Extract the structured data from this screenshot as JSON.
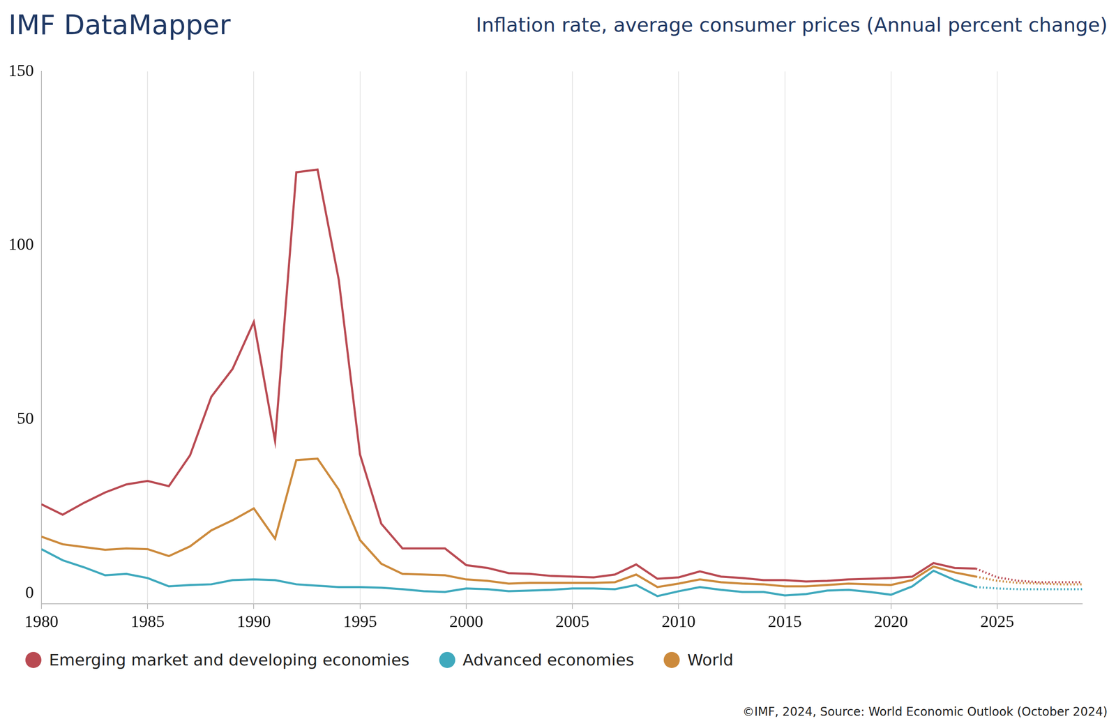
{
  "chart_data": {
    "type": "line",
    "title": "IMF DataMapper",
    "subtitle": "Inflation rate, average consumer prices (Annual percent change)",
    "footer": "©IMF, 2024, Source: World Economic Outlook (October 2024)",
    "x": [
      1980,
      1981,
      1982,
      1983,
      1984,
      1985,
      1986,
      1987,
      1988,
      1989,
      1990,
      1991,
      1992,
      1993,
      1994,
      1995,
      1996,
      1997,
      1998,
      1999,
      2000,
      2001,
      2002,
      2003,
      2004,
      2005,
      2006,
      2007,
      2008,
      2009,
      2010,
      2011,
      2012,
      2013,
      2014,
      2015,
      2016,
      2017,
      2018,
      2019,
      2020,
      2021,
      2022,
      2023,
      2024,
      2025,
      2026,
      2027,
      2028,
      2029
    ],
    "series": [
      {
        "name": "Emerging market and developing economies",
        "color": "#b94a52",
        "line_style": "solid",
        "values": [
          25.6,
          22.6,
          26.0,
          29.0,
          31.3,
          32.3,
          30.8,
          39.7,
          56.5,
          64.5,
          78.0,
          43.8,
          121.0,
          121.8,
          90.1,
          39.9,
          20.0,
          12.9,
          12.9,
          12.9,
          8.1,
          7.3,
          5.8,
          5.6,
          5.0,
          4.8,
          4.6,
          5.4,
          8.3,
          4.2,
          4.6,
          6.3,
          4.8,
          4.4,
          3.8,
          3.8,
          3.4,
          3.6,
          4.0,
          4.2,
          4.4,
          4.8,
          8.7,
          7.3,
          7.1,
          null,
          null,
          null,
          null,
          null
        ]
      },
      {
        "name": "Advanced economies",
        "color": "#3fa9bd",
        "line_style": "solid",
        "values": [
          12.7,
          9.5,
          7.5,
          5.2,
          5.6,
          4.4,
          2.0,
          2.4,
          2.6,
          3.8,
          4.0,
          3.8,
          2.6,
          2.2,
          1.8,
          1.8,
          1.6,
          1.2,
          0.6,
          0.4,
          1.4,
          1.2,
          0.6,
          0.8,
          1.0,
          1.4,
          1.4,
          1.2,
          2.4,
          -0.8,
          0.6,
          1.8,
          1.0,
          0.4,
          0.4,
          -0.6,
          -0.2,
          0.8,
          1.0,
          0.4,
          -0.4,
          2.0,
          6.5,
          3.8,
          1.8,
          null,
          null,
          null,
          null,
          null
        ]
      },
      {
        "name": "World",
        "color": "#cc8a3c",
        "line_style": "solid",
        "values": [
          16.3,
          14.1,
          13.3,
          12.5,
          12.9,
          12.7,
          10.7,
          13.5,
          18.1,
          21.0,
          24.4,
          15.7,
          38.3,
          38.7,
          29.8,
          15.3,
          8.5,
          5.6,
          5.4,
          5.2,
          4.0,
          3.6,
          2.8,
          3.0,
          3.0,
          3.0,
          3.0,
          3.2,
          5.4,
          1.8,
          2.8,
          4.0,
          3.2,
          2.8,
          2.6,
          2.0,
          2.0,
          2.4,
          2.8,
          2.6,
          2.4,
          3.8,
          7.7,
          6.0,
          4.8,
          null,
          null,
          null,
          null,
          null
        ]
      },
      {
        "name": "Emerging market and developing economies",
        "color": "#b94a52",
        "line_style": "dotted",
        "values": [
          null,
          null,
          null,
          null,
          null,
          null,
          null,
          null,
          null,
          null,
          null,
          null,
          null,
          null,
          null,
          null,
          null,
          null,
          null,
          null,
          null,
          null,
          null,
          null,
          null,
          null,
          null,
          null,
          null,
          null,
          null,
          null,
          null,
          null,
          null,
          null,
          null,
          null,
          null,
          null,
          null,
          null,
          null,
          null,
          7.1,
          4.6,
          3.6,
          3.2,
          3.2,
          3.2
        ]
      },
      {
        "name": "Advanced economies",
        "color": "#3fa9bd",
        "line_style": "dotted",
        "values": [
          null,
          null,
          null,
          null,
          null,
          null,
          null,
          null,
          null,
          null,
          null,
          null,
          null,
          null,
          null,
          null,
          null,
          null,
          null,
          null,
          null,
          null,
          null,
          null,
          null,
          null,
          null,
          null,
          null,
          null,
          null,
          null,
          null,
          null,
          null,
          null,
          null,
          null,
          null,
          null,
          null,
          null,
          null,
          null,
          1.8,
          1.4,
          1.2,
          1.2,
          1.2,
          1.2
        ]
      },
      {
        "name": "World",
        "color": "#cc8a3c",
        "line_style": "dotted",
        "values": [
          null,
          null,
          null,
          null,
          null,
          null,
          null,
          null,
          null,
          null,
          null,
          null,
          null,
          null,
          null,
          null,
          null,
          null,
          null,
          null,
          null,
          null,
          null,
          null,
          null,
          null,
          null,
          null,
          null,
          null,
          null,
          null,
          null,
          null,
          null,
          null,
          null,
          null,
          null,
          null,
          null,
          null,
          null,
          null,
          4.8,
          3.6,
          3.0,
          2.8,
          2.6,
          2.6
        ]
      }
    ],
    "xlim": [
      1980,
      2029
    ],
    "xticks": [
      1980,
      1985,
      1990,
      1995,
      2000,
      2005,
      2010,
      2015,
      2020,
      2025
    ],
    "ylim": [
      -3,
      150
    ],
    "yticks": [
      0,
      50,
      100,
      150
    ],
    "grid": "x",
    "legend": "bottom"
  }
}
